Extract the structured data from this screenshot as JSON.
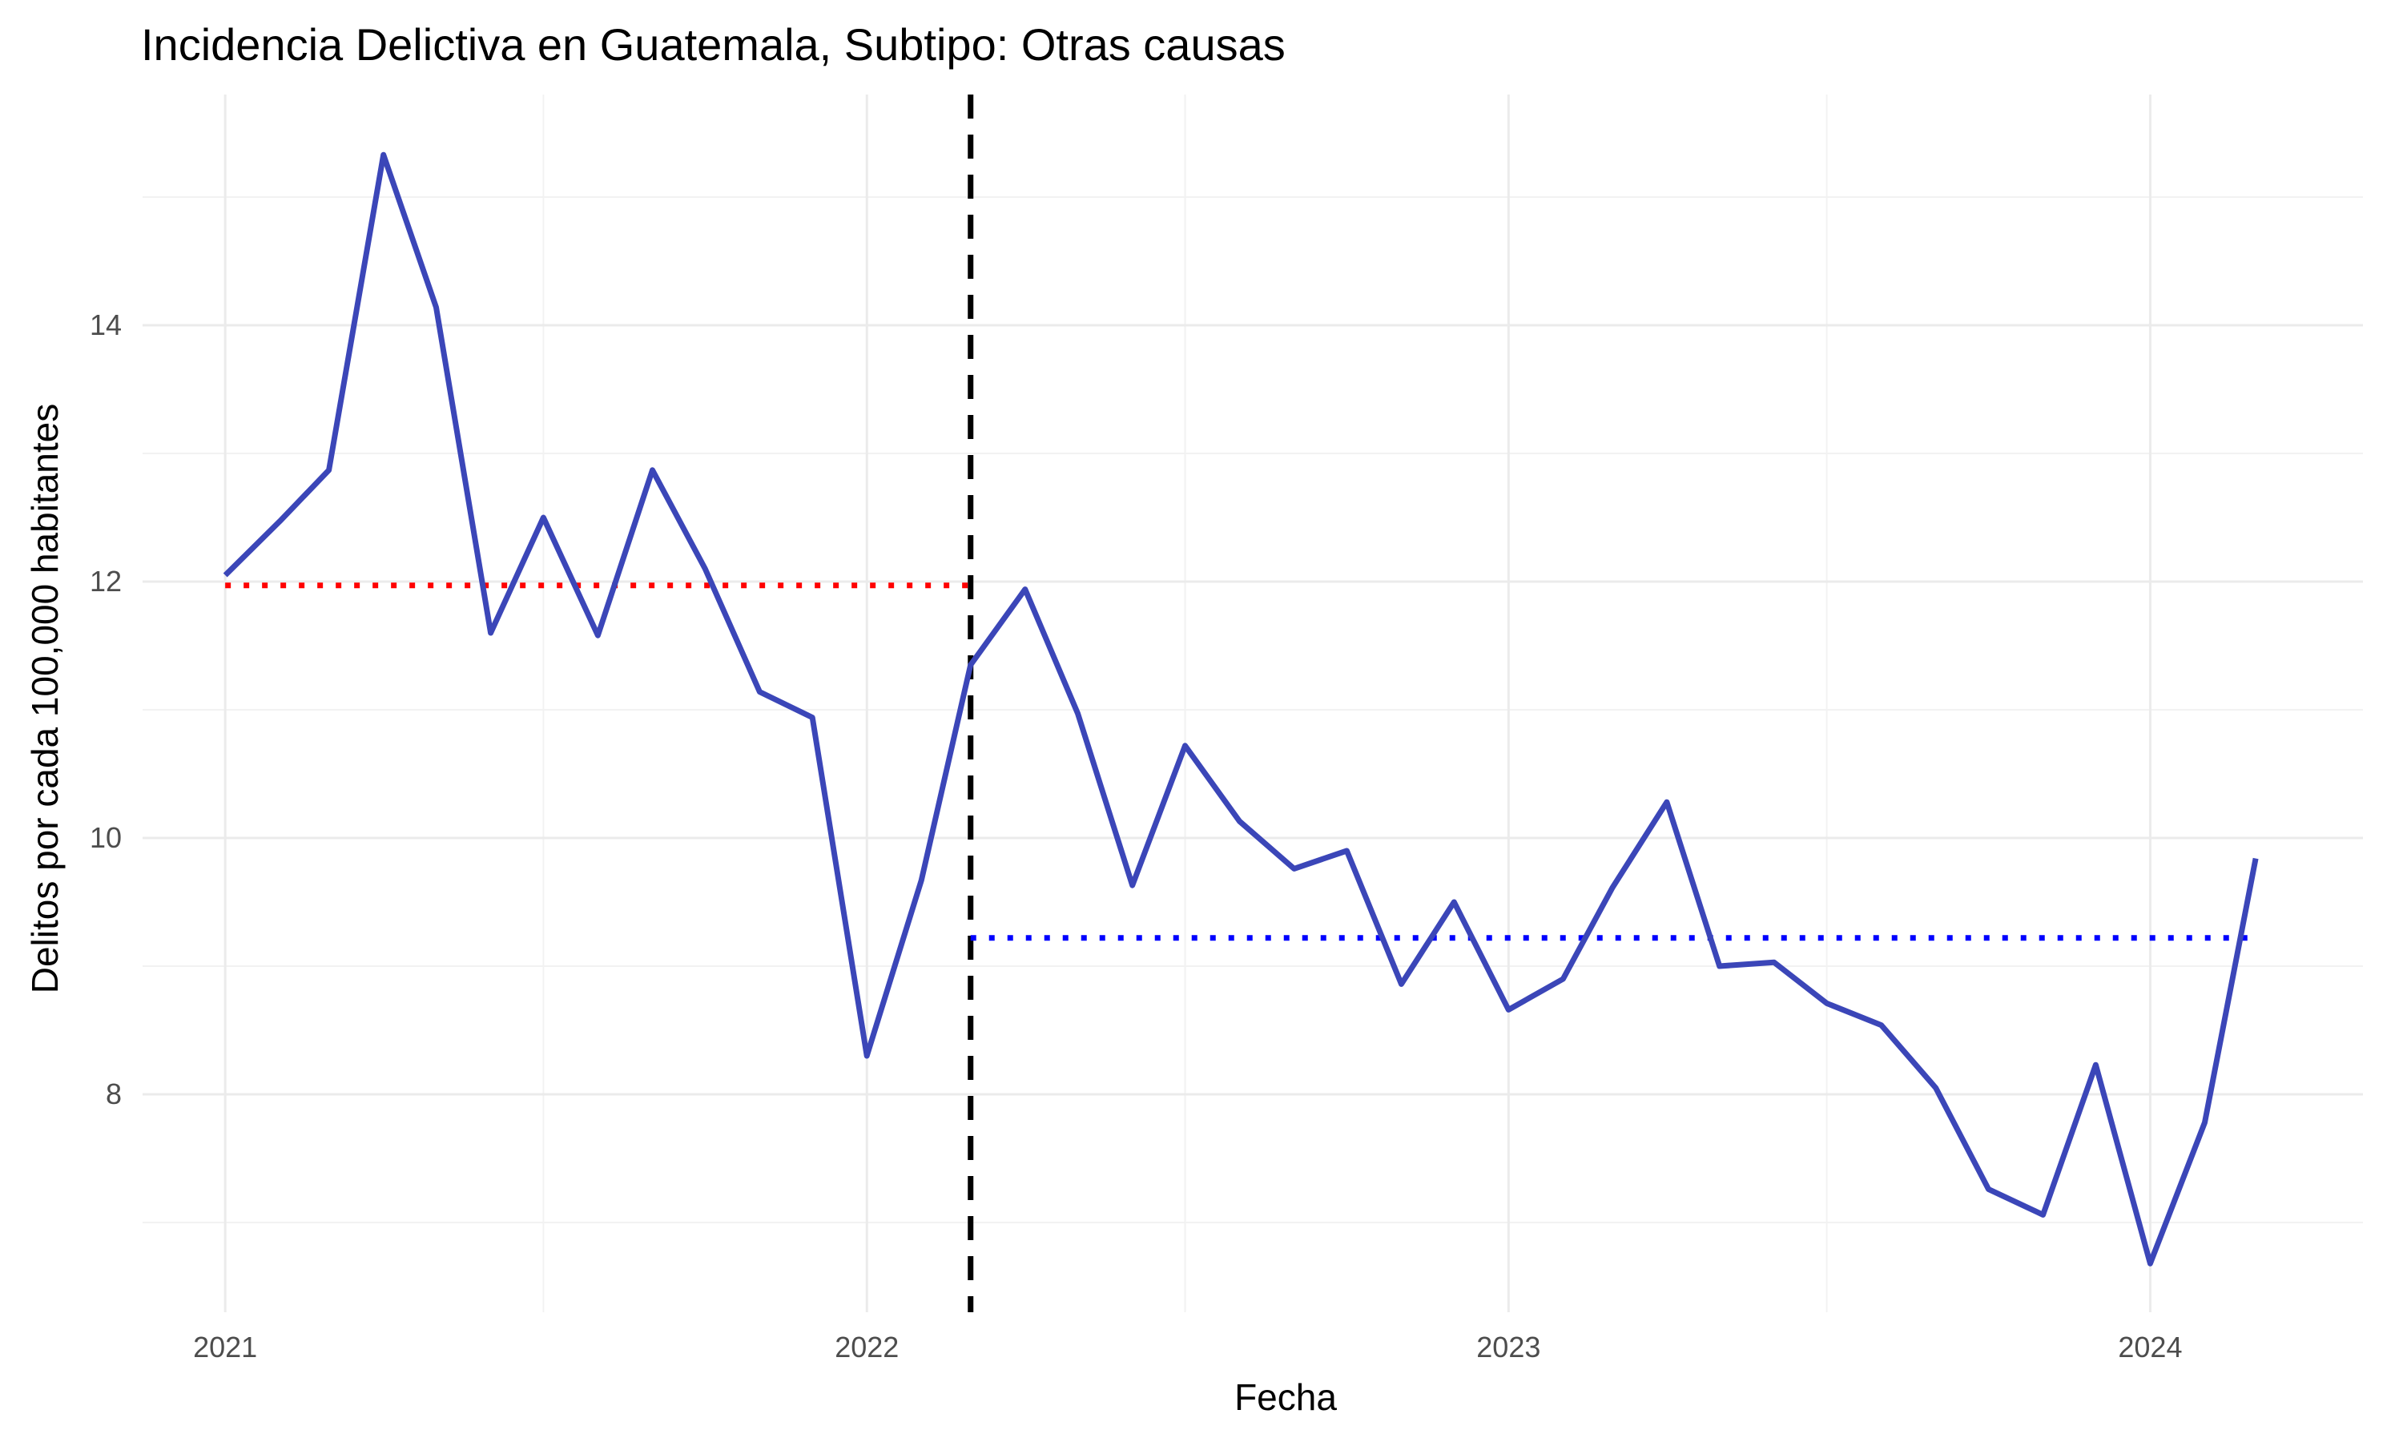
{
  "chart_data": {
    "type": "line",
    "title": "Incidencia Delictiva en Guatemala, Subtipo: Otras causas",
    "xlabel": "Fecha",
    "ylabel": "Delitos por cada 100,000 habitantes",
    "x_ticks": [
      "2021",
      "2022",
      "2023",
      "2024"
    ],
    "y_ticks": [
      8,
      10,
      12,
      14
    ],
    "xlim": [
      "2020-11-15",
      "2024-05-01"
    ],
    "ylim": [
      6.3,
      15.8
    ],
    "grid": true,
    "legend": "none",
    "series": [
      {
        "color": "#3b46b8",
        "x": [
          "2021-01-01",
          "2021-02-01",
          "2021-03-01",
          "2021-04-01",
          "2021-05-01",
          "2021-06-01",
          "2021-07-01",
          "2021-08-01",
          "2021-09-01",
          "2021-10-01",
          "2021-11-01",
          "2021-12-01",
          "2022-01-01",
          "2022-02-01",
          "2022-03-01",
          "2022-04-01",
          "2022-05-01",
          "2022-06-01",
          "2022-07-01",
          "2022-08-01",
          "2022-09-01",
          "2022-10-01",
          "2022-11-01",
          "2022-12-01",
          "2023-01-01",
          "2023-02-01",
          "2023-03-01",
          "2023-04-01",
          "2023-05-01",
          "2023-06-01",
          "2023-07-01",
          "2023-08-01",
          "2023-09-01",
          "2023-10-01",
          "2023-11-01",
          "2023-12-01",
          "2024-01-01",
          "2024-02-01",
          "2024-03-01"
        ],
        "values": [
          12.05,
          12.47,
          12.87,
          15.33,
          14.14,
          11.6,
          12.5,
          11.58,
          12.87,
          12.1,
          11.14,
          10.94,
          8.3,
          9.67,
          11.35,
          11.94,
          10.97,
          9.63,
          10.72,
          10.13,
          9.76,
          9.9,
          8.86,
          9.5,
          8.66,
          8.9,
          9.61,
          10.28,
          9.0,
          9.03,
          8.71,
          8.54,
          8.05,
          7.26,
          7.06,
          8.23,
          6.68,
          7.78,
          9.84
        ]
      }
    ],
    "annotations": [
      {
        "type": "vline",
        "x": "2022-03-01",
        "style": "dashed",
        "color": "#000000"
      },
      {
        "type": "hsegment",
        "x0": "2021-01-01",
        "x1": "2022-03-01",
        "y": 11.97,
        "style": "dotted",
        "color": "#ff0000"
      },
      {
        "type": "hsegment",
        "x0": "2022-03-01",
        "x1": "2024-03-01",
        "y": 9.22,
        "style": "dotted",
        "color": "#0000ff"
      }
    ]
  }
}
